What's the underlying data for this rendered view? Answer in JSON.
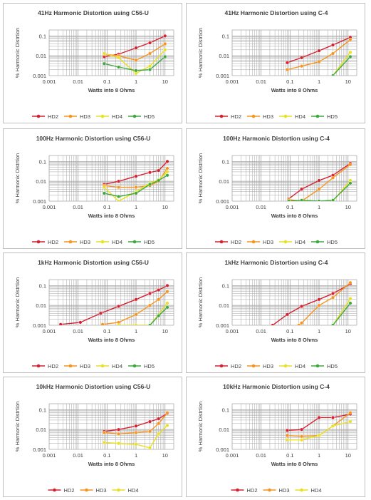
{
  "colors": {
    "HD2": "#d62031",
    "HD3": "#f7941d",
    "HD4": "#e8e020",
    "HD5": "#3da83d",
    "grid": "#a6a6a6",
    "text": "#404040"
  },
  "common": {
    "xlabel": "Watts into 8 Ohms",
    "ylabel": "% Harmonic Distrtion",
    "x_ticks": [
      "0.001",
      "0.01",
      "0.1",
      "1",
      "10"
    ],
    "y_ticks": [
      "0.1",
      "0.01",
      "0.001"
    ]
  },
  "chart_data": [
    {
      "type": "line",
      "title": "41Hz Harmonic Distortion using C56-U",
      "xscale": "log",
      "yscale": "log",
      "xlim": [
        0.001,
        20
      ],
      "ylim": [
        0.001,
        0.2
      ],
      "grid": true,
      "legend": "bottom",
      "series": [
        {
          "name": "HD2",
          "x": [
            0.08,
            0.25,
            1,
            3,
            10
          ],
          "y": [
            0.009,
            0.012,
            0.025,
            0.045,
            0.1
          ]
        },
        {
          "name": "HD3",
          "x": [
            0.08,
            0.25,
            1,
            3,
            10
          ],
          "y": [
            0.012,
            0.01,
            0.006,
            0.013,
            0.04
          ]
        },
        {
          "name": "HD4",
          "x": [
            0.08,
            0.25,
            1,
            3,
            10
          ],
          "y": [
            0.013,
            0.008,
            0.0013,
            0.003,
            0.02
          ]
        },
        {
          "name": "HD5",
          "x": [
            0.08,
            0.25,
            1,
            3,
            10
          ],
          "y": [
            0.004,
            0.0027,
            0.0018,
            0.002,
            0.009
          ]
        }
      ]
    },
    {
      "type": "line",
      "title": "41Hz Harmonic Distortion using C-4",
      "xscale": "log",
      "yscale": "log",
      "xlim": [
        0.001,
        20
      ],
      "ylim": [
        0.001,
        0.2
      ],
      "grid": true,
      "legend": "bottom",
      "series": [
        {
          "name": "HD2",
          "x": [
            0.08,
            0.25,
            1,
            3,
            12
          ],
          "y": [
            0.0045,
            0.008,
            0.018,
            0.035,
            0.085
          ]
        },
        {
          "name": "HD3",
          "x": [
            0.08,
            0.25,
            1,
            3,
            12
          ],
          "y": [
            0.002,
            0.003,
            0.005,
            0.013,
            0.065
          ]
        },
        {
          "name": "HD4",
          "x": [
            3,
            12
          ],
          "y": [
            0.001,
            0.015
          ]
        },
        {
          "name": "HD5",
          "x": [
            3,
            12
          ],
          "y": [
            0.001,
            0.009
          ]
        }
      ]
    },
    {
      "type": "line",
      "title": "100Hz Harmonic Distortion using C56-U",
      "xscale": "log",
      "yscale": "log",
      "xlim": [
        0.001,
        20
      ],
      "ylim": [
        0.001,
        0.2
      ],
      "grid": true,
      "legend": "bottom",
      "series": [
        {
          "name": "HD2",
          "x": [
            0.08,
            0.25,
            1,
            3,
            6,
            12
          ],
          "y": [
            0.007,
            0.01,
            0.018,
            0.028,
            0.035,
            0.1
          ]
        },
        {
          "name": "HD3",
          "x": [
            0.08,
            0.25,
            1,
            3,
            6,
            12
          ],
          "y": [
            0.006,
            0.005,
            0.005,
            0.006,
            0.01,
            0.045
          ]
        },
        {
          "name": "HD4",
          "x": [
            0.08,
            0.25,
            1,
            3,
            6,
            12
          ],
          "y": [
            0.005,
            0.001,
            0.003,
            0.008,
            0.012,
            0.03
          ]
        },
        {
          "name": "HD5",
          "x": [
            0.08,
            0.25,
            1,
            3,
            6,
            12
          ],
          "y": [
            0.0025,
            0.0017,
            0.0025,
            0.007,
            0.011,
            0.02
          ]
        }
      ]
    },
    {
      "type": "line",
      "title": "100Hz Harmonic Distortion using C-4",
      "xscale": "log",
      "yscale": "log",
      "xlim": [
        0.001,
        20
      ],
      "ylim": [
        0.001,
        0.2
      ],
      "grid": true,
      "legend": "bottom",
      "series": [
        {
          "name": "HD2",
          "x": [
            0.09,
            0.25,
            1,
            3,
            12
          ],
          "y": [
            0.0013,
            0.004,
            0.011,
            0.02,
            0.08
          ]
        },
        {
          "name": "HD3",
          "x": [
            0.09,
            0.25,
            1,
            3,
            12
          ],
          "y": [
            0.0012,
            0.001,
            0.004,
            0.015,
            0.07
          ]
        },
        {
          "name": "HD4",
          "x": [
            0.09,
            0.25,
            1,
            3,
            12
          ],
          "y": [
            0.001,
            0.001,
            0.001,
            0.001,
            0.011
          ]
        },
        {
          "name": "HD5",
          "x": [
            0.09,
            0.25,
            1,
            3,
            12
          ],
          "y": [
            0.001,
            0.0011,
            0.001,
            0.0011,
            0.008
          ]
        }
      ]
    },
    {
      "type": "line",
      "title": "1kHz Harmonic Distortion using C56-U",
      "xscale": "log",
      "yscale": "log",
      "xlim": [
        0.001,
        20
      ],
      "ylim": [
        0.001,
        0.2
      ],
      "grid": true,
      "legend": "bottom",
      "series": [
        {
          "name": "HD2",
          "x": [
            0.0025,
            0.012,
            0.06,
            0.25,
            1,
            3,
            6,
            12
          ],
          "y": [
            0.0011,
            0.0014,
            0.004,
            0.009,
            0.02,
            0.04,
            0.06,
            0.1
          ]
        },
        {
          "name": "HD3",
          "x": [
            0.07,
            0.25,
            1,
            3,
            6,
            12
          ],
          "y": [
            0.0011,
            0.0014,
            0.0035,
            0.01,
            0.02,
            0.05
          ]
        },
        {
          "name": "HD4",
          "x": [
            0.25,
            1,
            3,
            12
          ],
          "y": [
            0.001,
            0.001,
            0.001,
            0.013
          ]
        },
        {
          "name": "HD5",
          "x": [
            3,
            6,
            12
          ],
          "y": [
            0.001,
            0.003,
            0.008
          ]
        }
      ]
    },
    {
      "type": "line",
      "title": "1kHz Harmonic Distortion using C-4",
      "xscale": "log",
      "yscale": "log",
      "xlim": [
        0.001,
        20
      ],
      "ylim": [
        0.001,
        0.2
      ],
      "grid": true,
      "legend": "bottom",
      "series": [
        {
          "name": "HD2",
          "x": [
            0.025,
            0.08,
            0.25,
            1,
            3,
            12
          ],
          "y": [
            0.001,
            0.0035,
            0.009,
            0.02,
            0.04,
            0.12
          ]
        },
        {
          "name": "HD3",
          "x": [
            0.2,
            0.25,
            1,
            3,
            12
          ],
          "y": [
            0.001,
            0.0013,
            0.01,
            0.025,
            0.14
          ]
        },
        {
          "name": "HD4",
          "x": [
            3,
            12
          ],
          "y": [
            0.001,
            0.022
          ]
        },
        {
          "name": "HD5",
          "x": [
            3,
            12
          ],
          "y": [
            0.001,
            0.013
          ]
        }
      ]
    },
    {
      "type": "line",
      "title": "10kHz Harmonic Distortion using C56-U",
      "xscale": "log",
      "yscale": "log",
      "xlim": [
        0.001,
        20
      ],
      "ylim": [
        0.001,
        0.2
      ],
      "grid": true,
      "legend": "bottom",
      "series": [
        {
          "name": "HD2",
          "x": [
            0.08,
            0.25,
            1,
            3,
            6,
            12
          ],
          "y": [
            0.008,
            0.01,
            0.015,
            0.025,
            0.035,
            0.065
          ]
        },
        {
          "name": "HD3",
          "x": [
            0.08,
            0.25,
            1,
            3,
            6,
            12
          ],
          "y": [
            0.007,
            0.006,
            0.007,
            0.008,
            0.02,
            0.07
          ]
        },
        {
          "name": "HD4",
          "x": [
            0.08,
            0.25,
            1,
            3,
            6,
            12
          ],
          "y": [
            0.0022,
            0.002,
            0.0018,
            0.0012,
            0.006,
            0.016
          ]
        }
      ]
    },
    {
      "type": "line",
      "title": "10kHz Harmonic Distortion using C-4",
      "xscale": "log",
      "yscale": "log",
      "xlim": [
        0.001,
        20
      ],
      "ylim": [
        0.001,
        0.2
      ],
      "grid": true,
      "legend": "bottom",
      "series": [
        {
          "name": "HD2",
          "x": [
            0.08,
            0.25,
            1,
            3,
            12
          ],
          "y": [
            0.009,
            0.01,
            0.04,
            0.04,
            0.06
          ]
        },
        {
          "name": "HD3",
          "x": [
            0.08,
            0.25,
            1,
            3,
            12
          ],
          "y": [
            0.005,
            0.0045,
            0.005,
            0.015,
            0.07
          ]
        },
        {
          "name": "HD4",
          "x": [
            0.08,
            0.25,
            1,
            3,
            12
          ],
          "y": [
            0.003,
            0.003,
            0.005,
            0.015,
            0.025
          ]
        }
      ]
    }
  ]
}
